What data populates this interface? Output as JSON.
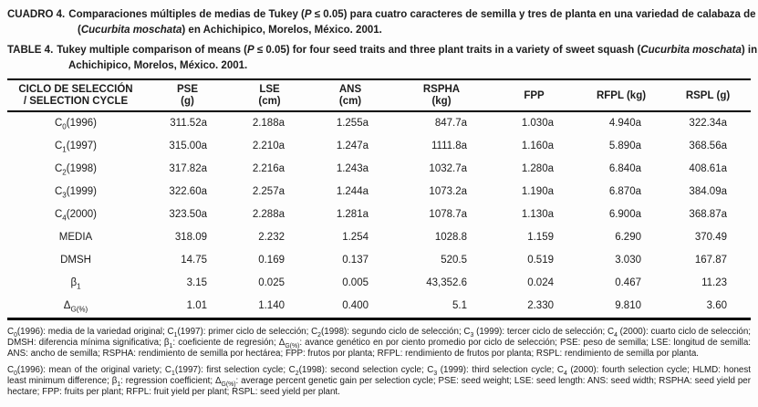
{
  "captions": {
    "spanish": {
      "label": "CUADRO 4.",
      "segments": [
        {
          "t": "Comparaciones múltiples de medias de Tukey ("
        },
        {
          "t": "P",
          "i": true
        },
        {
          "t": " ≤ 0.05) para cuatro caracteres de semilla y tres de planta en una variedad de calabaza de dulce ("
        },
        {
          "t": "Cucurbita moschata",
          "i": true
        },
        {
          "t": ") en Achichipico, Morelos, México. 2001."
        }
      ]
    },
    "english": {
      "label": "TABLE 4.",
      "segments": [
        {
          "t": "Tukey multiple comparison of means ("
        },
        {
          "t": "P",
          "i": true
        },
        {
          "t": " ≤ 0.05) for four seed traits and three plant traits in a variety of sweet squash ("
        },
        {
          "t": "Cucurbita moschata",
          "i": true
        },
        {
          "t": ") in Achichipico, Morelos, México. 2001."
        }
      ]
    }
  },
  "table": {
    "columns": [
      {
        "key": "ciclo",
        "line1": "CICLO DE SELECCIÓN",
        "line2": "/ SELECTION CYCLE"
      },
      {
        "key": "pse",
        "line1": "PSE",
        "line2": "(g)"
      },
      {
        "key": "lse",
        "line1": "LSE",
        "line2": "(cm)"
      },
      {
        "key": "ans",
        "line1": "ANS",
        "line2": "(cm)"
      },
      {
        "key": "rspha",
        "line1": "RSPHA",
        "line2": "(kg)"
      },
      {
        "key": "fpp",
        "line1": "FPP",
        "line2": ""
      },
      {
        "key": "rfpl",
        "line1": "RFPL (kg)",
        "line2": ""
      },
      {
        "key": "rspl",
        "line1": "RSPL (g)",
        "line2": ""
      }
    ],
    "rows": [
      {
        "label": [
          {
            "t": "C"
          },
          {
            "t": "0",
            "sub": true
          },
          {
            "t": "(1996)"
          }
        ],
        "values": [
          "311.52a",
          "2.188a",
          "1.255a",
          "847.7a",
          "1.030a",
          "4.940a",
          "322.34a"
        ]
      },
      {
        "label": [
          {
            "t": "C"
          },
          {
            "t": "1",
            "sub": true
          },
          {
            "t": "(1997)"
          }
        ],
        "values": [
          "315.00a",
          "2.210a",
          "1.247a",
          "1111.8a",
          "1.160a",
          "5.890a",
          "368.56a"
        ]
      },
      {
        "label": [
          {
            "t": "C"
          },
          {
            "t": "2",
            "sub": true
          },
          {
            "t": "(1998)"
          }
        ],
        "values": [
          "317.82a",
          "2.216a",
          "1.243a",
          "1032.7a",
          "1.280a",
          "6.840a",
          "408.61a"
        ]
      },
      {
        "label": [
          {
            "t": "C"
          },
          {
            "t": "3",
            "sub": true
          },
          {
            "t": "(1999)"
          }
        ],
        "values": [
          "322.60a",
          "2.257a",
          "1.244a",
          "1073.2a",
          "1.190a",
          "6.870a",
          "384.09a"
        ]
      },
      {
        "label": [
          {
            "t": "C"
          },
          {
            "t": "4",
            "sub": true
          },
          {
            "t": "(2000)"
          }
        ],
        "values": [
          "323.50a",
          "2.288a",
          "1.281a",
          "1078.7a",
          "1.130a",
          "6.900a",
          "368.87a"
        ]
      },
      {
        "label": [
          {
            "t": "MEDIA"
          }
        ],
        "values": [
          "318.09",
          "2.232",
          "1.254",
          "1028.8",
          "1.159",
          "6.290",
          "370.49"
        ]
      },
      {
        "label": [
          {
            "t": "DMSH"
          }
        ],
        "values": [
          "14.75",
          "0.169",
          "0.137",
          "520.5",
          "0.519",
          "3.030",
          "167.87"
        ]
      },
      {
        "label": [
          {
            "t": "β"
          },
          {
            "t": "1",
            "sub": true
          }
        ],
        "values": [
          "3.15",
          "0.025",
          "0.005",
          "43,352.6",
          "0.024",
          "0.467",
          "11.23"
        ]
      },
      {
        "label": [
          {
            "t": "Δ"
          },
          {
            "t": "G(%)",
            "sub": true
          }
        ],
        "values": [
          "1.01",
          "1.140",
          "0.400",
          "5.1",
          "2.330",
          "9.810",
          "3.60"
        ]
      }
    ]
  },
  "footnotes": {
    "spanish": [
      {
        "t": "C"
      },
      {
        "t": "0",
        "sub": true
      },
      {
        "t": "(1996): media de la variedad original; C"
      },
      {
        "t": "1",
        "sub": true
      },
      {
        "t": "(1997): primer ciclo de selección; C"
      },
      {
        "t": "2",
        "sub": true
      },
      {
        "t": "(1998): segundo ciclo de selección; C"
      },
      {
        "t": "3",
        "sub": true
      },
      {
        "t": " (1999): tercer ciclo de selección; C"
      },
      {
        "t": "4",
        "sub": true
      },
      {
        "t": " (2000): cuarto ciclo de selección; DMSH: diferencia mínima significativa; β"
      },
      {
        "t": "1",
        "sub": true
      },
      {
        "t": ": coeficiente de regresión; Δ"
      },
      {
        "t": "G(%)",
        "sub": true
      },
      {
        "t": ": avance genético en por ciento promedio por ciclo de selección; PSE: peso de semilla; LSE: longitud de semilla: ANS: ancho de semilla; RSPHA: rendimiento de semilla por hectárea; FPP: frutos por planta; RFPL: rendimiento de frutos por planta; RSPL: rendimiento de semilla por planta."
      }
    ],
    "english": [
      {
        "t": "C"
      },
      {
        "t": "0",
        "sub": true
      },
      {
        "t": "(1996): mean of the original variety; C"
      },
      {
        "t": "1",
        "sub": true
      },
      {
        "t": "(1997): first selection cycle; C"
      },
      {
        "t": "2",
        "sub": true
      },
      {
        "t": "(1998): second selection cycle; C"
      },
      {
        "t": "3",
        "sub": true
      },
      {
        "t": " (1999): third selection cycle; C"
      },
      {
        "t": "4",
        "sub": true
      },
      {
        "t": " (2000): fourth selection cycle; HLMD: honest least minimum difference; β"
      },
      {
        "t": "1",
        "sub": true
      },
      {
        "t": ": regression coefficient; Δ"
      },
      {
        "t": "G(%)",
        "sub": true
      },
      {
        "t": ": average percent genetic gain per selection cycle; PSE: seed weight; LSE: seed length: ANS: seed width; RSPHA: seed yield per hectare; FPP: fruits per plant; RFPL: fruit yield per plant; RSPL: seed yield per plant."
      }
    ]
  }
}
